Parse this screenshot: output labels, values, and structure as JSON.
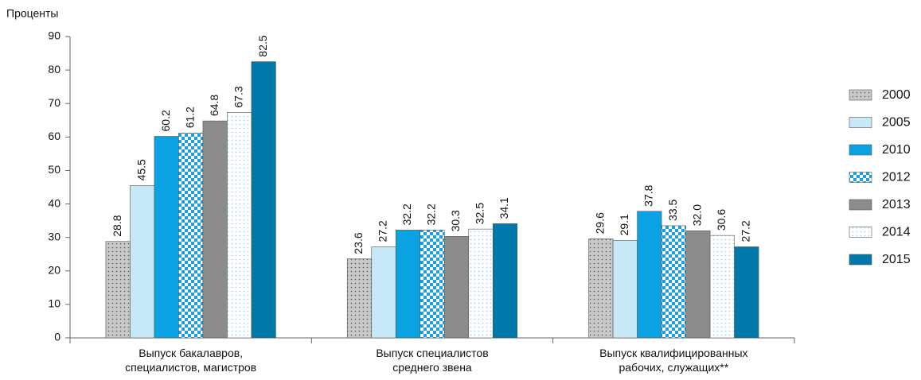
{
  "chart_data": {
    "type": "bar",
    "y_label": "Проценты",
    "categories": [
      "Выпуск бакалавров,\nспециалистов, магистров",
      "Выпуск специалистов\nсреднего звена",
      "Выпуск квалифицированных\nрабочих, служащих**"
    ],
    "series": [
      {
        "name": "2000",
        "color": "#c8c8c8",
        "pattern": "dots",
        "values": [
          28.8,
          23.6,
          29.6
        ],
        "value_labels": [
          "28.8",
          "23.6",
          "29.6"
        ]
      },
      {
        "name": "2005",
        "color": "#c6e8f7",
        "pattern": "solid",
        "values": [
          45.5,
          27.2,
          29.1
        ],
        "value_labels": [
          "45.5",
          "27.2",
          "29.1"
        ]
      },
      {
        "name": "2010",
        "color": "#0aa2e2",
        "pattern": "solid",
        "values": [
          60.2,
          32.2,
          37.8
        ],
        "value_labels": [
          "60.2",
          "32.2",
          "37.8"
        ]
      },
      {
        "name": "2012",
        "color": "#1aa0e0",
        "pattern": "checker",
        "values": [
          61.2,
          32.2,
          33.5
        ],
        "value_labels": [
          "61.2",
          "32.2",
          "33.5"
        ]
      },
      {
        "name": "2013",
        "color": "#8c8c8c",
        "pattern": "solid",
        "values": [
          64.8,
          30.3,
          32.0
        ],
        "value_labels": [
          "64.8",
          "30.3",
          "32.0"
        ]
      },
      {
        "name": "2014",
        "color": "#9fd8f2",
        "pattern": "lightdots",
        "values": [
          67.3,
          32.5,
          30.6
        ],
        "value_labels": [
          "67.3",
          "32.5",
          "30.6"
        ]
      },
      {
        "name": "2015",
        "color": "#0078aa",
        "pattern": "solid",
        "values": [
          82.5,
          34.1,
          27.2
        ],
        "value_labels": [
          "82.5",
          "34.1",
          "27.2"
        ]
      }
    ],
    "ylim": [
      0,
      90
    ],
    "yticks": [
      0,
      10,
      20,
      30,
      40,
      50,
      60,
      70,
      80,
      90
    ],
    "grid": false,
    "legend": "right"
  }
}
